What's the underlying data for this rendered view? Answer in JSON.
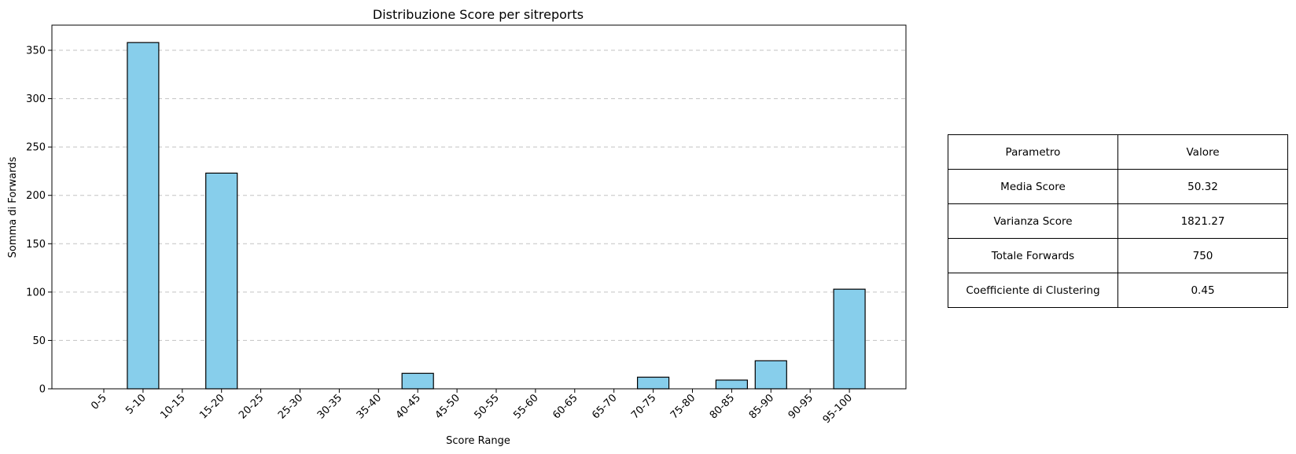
{
  "chart_data": {
    "type": "bar",
    "title": "Distribuzione Score per sitreports",
    "xlabel": "Score Range",
    "ylabel": "Somma di Forwards",
    "categories": [
      "0-5",
      "5-10",
      "10-15",
      "15-20",
      "20-25",
      "25-30",
      "30-35",
      "35-40",
      "40-45",
      "45-50",
      "50-55",
      "55-60",
      "60-65",
      "65-70",
      "70-75",
      "75-80",
      "80-85",
      "85-90",
      "90-95",
      "95-100"
    ],
    "values": [
      0,
      358,
      0,
      223,
      0,
      0,
      0,
      0,
      16,
      0,
      0,
      0,
      0,
      0,
      12,
      0,
      9,
      29,
      0,
      103
    ],
    "ylim": [
      0,
      376
    ],
    "yticks": [
      0,
      50,
      100,
      150,
      200,
      250,
      300,
      350
    ],
    "grid": "y-axis dashed",
    "colors": {
      "bar_fill": "#87ceeb",
      "bar_edge": "#000000"
    }
  },
  "table": {
    "header": {
      "param": "Parametro",
      "value": "Valore"
    },
    "rows": [
      {
        "param": "Media Score",
        "value": "50.32"
      },
      {
        "param": "Varianza Score",
        "value": "1821.27"
      },
      {
        "param": "Totale Forwards",
        "value": "750"
      },
      {
        "param": "Coefficiente di Clustering",
        "value": "0.45"
      }
    ]
  }
}
